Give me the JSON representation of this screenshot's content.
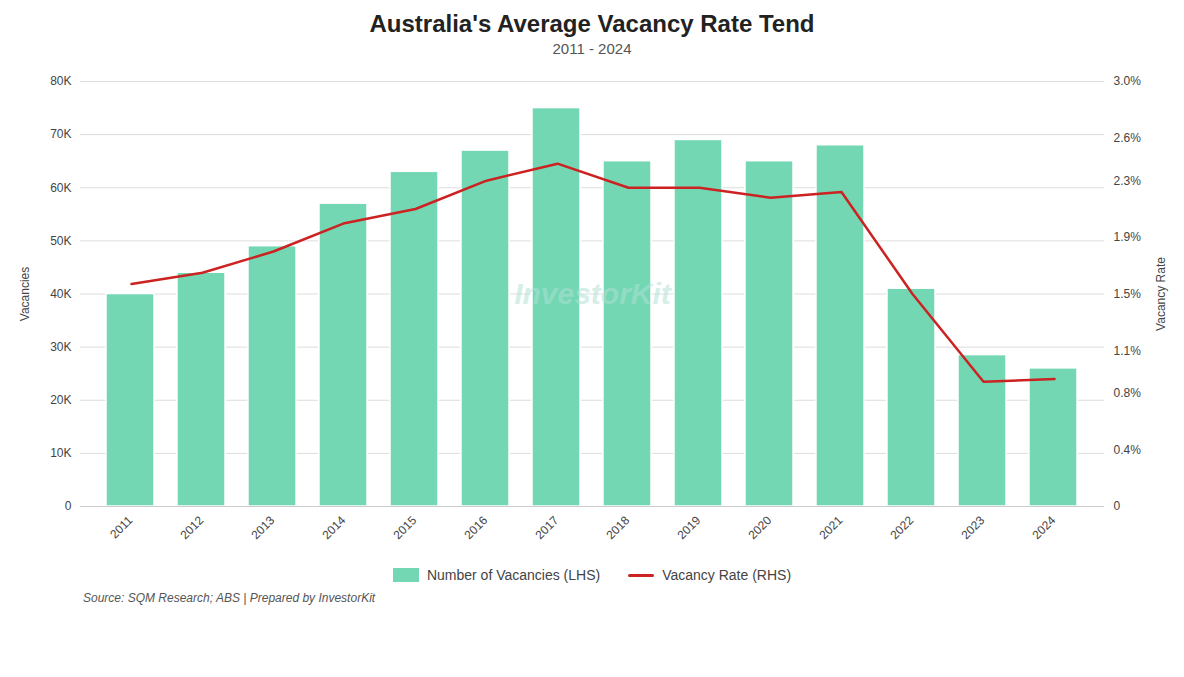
{
  "chart_data": {
    "type": "bar",
    "title": "Australia's Average Vacancy Rate Tend",
    "subtitle": "2011 - 2024",
    "caption": "Source: SQM Research; ABS | Prepared by InvestorKit",
    "annotations": [
      "InvestorKit"
    ],
    "categories": [
      "2011",
      "2012",
      "2013",
      "2014",
      "2015",
      "2016",
      "2017",
      "2018",
      "2019",
      "2020",
      "2021",
      "2022",
      "2023",
      "2024"
    ],
    "series": [
      {
        "name": "Number of Vacancies (LHS)",
        "type": "bar",
        "color": "#72d7b2",
        "values": [
          40000,
          44000,
          49000,
          57000,
          63000,
          67000,
          75000,
          65000,
          69000,
          65000,
          68000,
          41000,
          28500,
          26000
        ]
      },
      {
        "name": "Vacancy Rate (RHS)",
        "type": "line",
        "axis": "y2",
        "color": "#cc2222",
        "values": [
          1.57,
          1.65,
          1.8,
          2.0,
          2.1,
          2.3,
          2.42,
          2.25,
          2.25,
          2.18,
          2.22,
          1.5,
          0.88,
          0.9
        ]
      }
    ],
    "ylabel": "Vacancies",
    "y2label": "Vacancy Rate",
    "ylim": [
      0,
      80000
    ],
    "yticks": [
      0,
      {
        "value": 10000,
        "label": "10K"
      },
      {
        "value": 20000,
        "label": "20K"
      },
      {
        "value": 30000,
        "label": "30K"
      },
      {
        "value": 40000,
        "label": "40K"
      },
      {
        "value": 50000,
        "label": "50K"
      },
      {
        "value": 60000,
        "label": "60K"
      },
      {
        "value": 70000,
        "label": "70K"
      },
      {
        "value": 80000,
        "label": "80K"
      }
    ],
    "y2lim": [
      0,
      3.0
    ],
    "y2ticks": [
      0,
      {
        "value": 0.4,
        "label": "0.4%"
      },
      {
        "value": 0.8,
        "label": "0.8%"
      },
      {
        "value": 1.1,
        "label": "1.1%"
      },
      {
        "value": 1.5,
        "label": "1.5%"
      },
      {
        "value": 1.9,
        "label": "1.9%"
      },
      {
        "value": 2.3,
        "label": "2.3%"
      },
      {
        "value": 2.6,
        "label": "2.6%"
      },
      {
        "value": 3.0,
        "label": "3.0%"
      }
    ],
    "grid": true,
    "legend": "bottom"
  }
}
